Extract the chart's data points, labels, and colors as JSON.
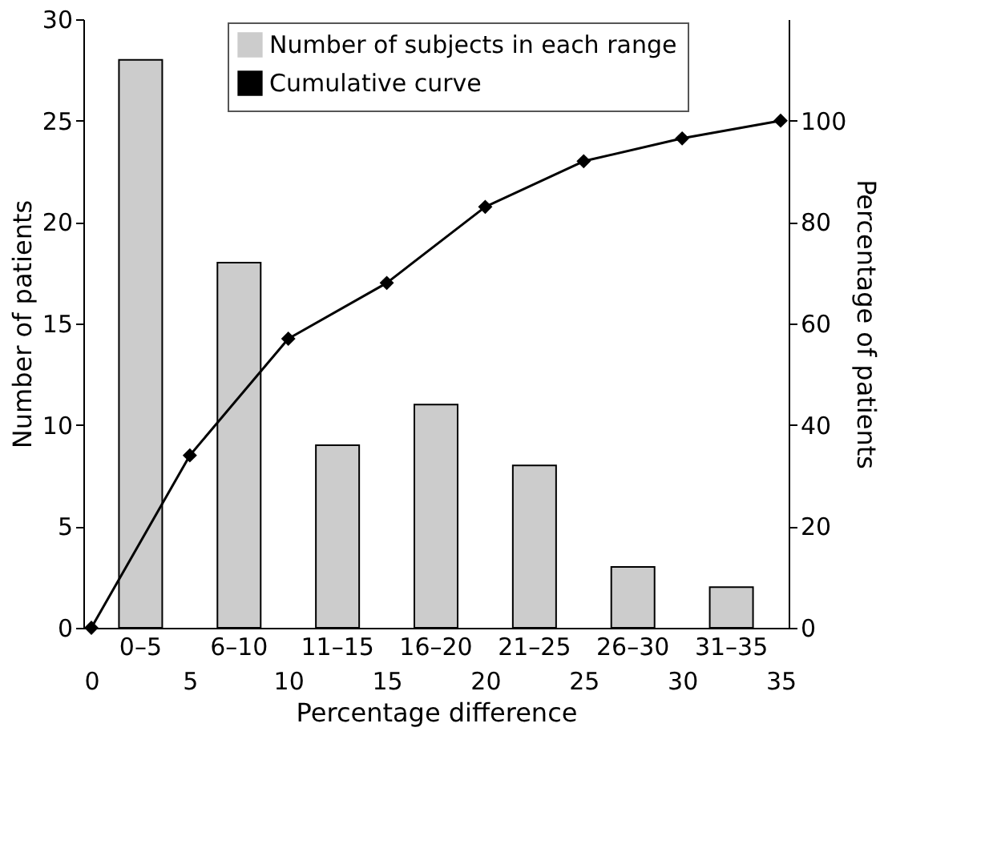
{
  "chart_data": {
    "type": "bar",
    "xlabel": "Percentage difference",
    "ylabel": "Number of patients",
    "y2label": "Percentage of patients",
    "series": [
      {
        "name": "Number of subjects in each range",
        "color": "#cccccc",
        "x": [
          2.5,
          7.5,
          12.5,
          17.5,
          22.5,
          27.5,
          32.5
        ],
        "values": [
          28,
          18,
          9,
          11,
          8,
          3,
          2
        ]
      },
      {
        "name": "Cumulative curve",
        "type": "line",
        "axis": "y2",
        "color": "#000000",
        "marker": "diamond",
        "line_style": "solid",
        "x": [
          0,
          5,
          10,
          15,
          20,
          25,
          30,
          35
        ],
        "values": [
          0,
          34,
          57,
          68,
          83,
          92,
          96.5,
          100
        ]
      }
    ],
    "xlim": [
      0,
      35
    ],
    "xticks": [
      0,
      5,
      10,
      15,
      20,
      25,
      30,
      35
    ],
    "annotations": [
      "0–5",
      "6–10",
      "11–15",
      "16–20",
      "21–25",
      "26–30",
      "31–35"
    ],
    "ylim": [
      0,
      30
    ],
    "yticks": [
      0,
      5,
      10,
      15,
      20,
      25,
      30
    ],
    "y2lim": [
      0,
      120
    ],
    "y2ticks": [
      0,
      20,
      40,
      60,
      80,
      100
    ],
    "legend": "top",
    "grid": false
  }
}
